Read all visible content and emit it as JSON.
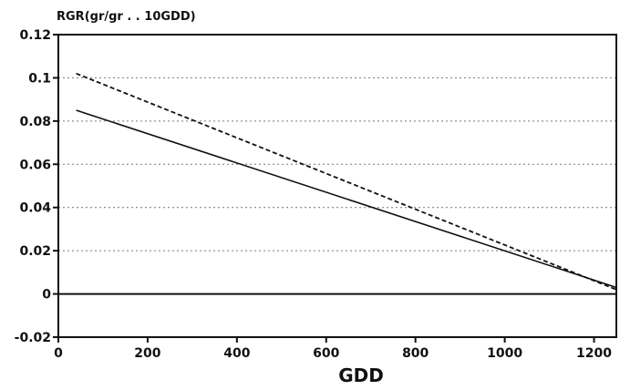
{
  "chart_data": {
    "type": "line",
    "ylabel": "RGR(gr/gr . . 10GDD)",
    "xlabel": "GDD",
    "xlim": [
      0,
      1250
    ],
    "ylim": [
      -0.02,
      0.12
    ],
    "x_ticks": [
      0,
      200,
      400,
      600,
      800,
      1000,
      1200
    ],
    "x_tick_labels": [
      "0",
      "200",
      "400",
      "600",
      "800",
      "1000",
      "1200"
    ],
    "y_ticks": [
      -0.02,
      0,
      0.02,
      0.04,
      0.06,
      0.08,
      0.1,
      0.12
    ],
    "y_tick_labels": [
      "-0.02",
      "0",
      "0.02",
      "0.04",
      "0.06",
      "0.08",
      "0.1",
      "0.12"
    ],
    "grid": "horizontal-dotted",
    "series": [
      {
        "style": "solid",
        "x": [
          40,
          1250
        ],
        "y": [
          0.085,
          0.003
        ]
      },
      {
        "style": "dashed",
        "x": [
          40,
          1250
        ],
        "y": [
          0.102,
          0.002
        ]
      }
    ],
    "zero_line": {
      "y": 0
    }
  }
}
